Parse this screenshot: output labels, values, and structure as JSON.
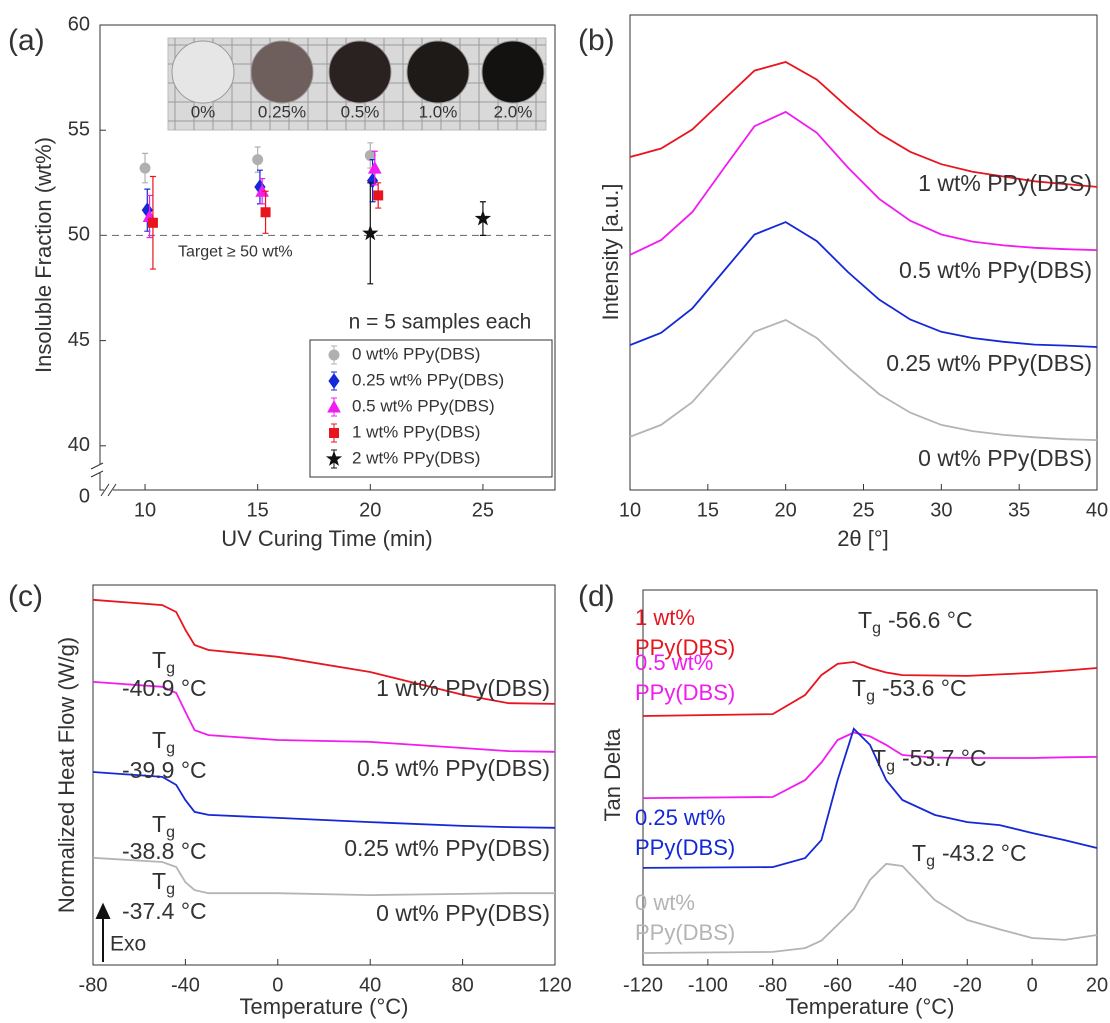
{
  "chart_data": [
    {
      "type": "scatter",
      "panel": "(a)",
      "x_label": "UV Curing Time (min)",
      "y_label": "Insoluble Fraction (wt%)",
      "xlim": [
        8,
        28.2
      ],
      "xticks": [
        10,
        15,
        20,
        25
      ],
      "ylim": [
        37.9,
        60
      ],
      "yticks": [
        40,
        45,
        50,
        55,
        60
      ],
      "y_break_tick": 0,
      "target": {
        "value": 50,
        "label": "Target ≥ 50 wt%"
      },
      "note": "n = 5 samples each",
      "note_color": "#1ab2e8",
      "photo_labels": [
        "0%",
        "0.25%",
        "0.5%",
        "1.0%",
        "2.0%"
      ],
      "series": [
        {
          "name": "0 wt% PPy(DBS)",
          "color": "#b0b0b0",
          "marker": "circle",
          "x": [
            10,
            15,
            20
          ],
          "values": [
            53.2,
            53.6,
            53.8
          ],
          "errors": [
            0.7,
            0.6,
            0.6
          ]
        },
        {
          "name": "0.25 wt% PPy(DBS)",
          "color": "#1428d8",
          "marker": "diamond",
          "x": [
            10.1,
            15.1,
            20.1
          ],
          "values": [
            51.2,
            52.3,
            52.6
          ],
          "errors": [
            1.0,
            0.8,
            1.0
          ]
        },
        {
          "name": "0.5 wt% PPy(DBS)",
          "color": "#f01cf0",
          "marker": "triangle",
          "x": [
            10.2,
            15.2,
            20.2
          ],
          "values": [
            50.9,
            52.1,
            53.2
          ],
          "errors": [
            1.0,
            0.6,
            0.8
          ]
        },
        {
          "name": "1 wt% PPy(DBS)",
          "color": "#e8141e",
          "marker": "square",
          "x": [
            10.35,
            15.35,
            20.35
          ],
          "values": [
            50.6,
            51.1,
            51.9
          ],
          "errors": [
            2.2,
            1.0,
            0.6
          ]
        },
        {
          "name": "2 wt% PPy(DBS)",
          "color": "#111111",
          "marker": "star",
          "x": [
            20,
            25
          ],
          "values": [
            50.1,
            50.8
          ],
          "errors": [
            2.4,
            0.8
          ]
        }
      ]
    },
    {
      "type": "line",
      "panel": "(b)",
      "x_label": "2θ [°]",
      "y_label": "Intensity [a.u.]",
      "xlim": [
        10,
        40
      ],
      "xticks": [
        10,
        15,
        20,
        25,
        30,
        35,
        40
      ],
      "ylim": [
        0,
        100
      ],
      "x": [
        10,
        12,
        14,
        16,
        18,
        20,
        22,
        24,
        26,
        28,
        30,
        32,
        34,
        36,
        38,
        40
      ],
      "series": [
        {
          "name": "1 wt% PPy(DBS)",
          "color": "#e8141e",
          "values": [
            70.1,
            71.9,
            75.9,
            82.1,
            88.3,
            90.1,
            86.4,
            80.5,
            75.1,
            71.2,
            68.6,
            67.0,
            66.0,
            65.0,
            64.4,
            63.8
          ]
        },
        {
          "name": "0.5 wt% PPy(DBS)",
          "color": "#f01cf0",
          "values": [
            49.5,
            52.6,
            58.5,
            67.6,
            76.6,
            79.6,
            75.2,
            67.9,
            61.3,
            56.7,
            53.8,
            52.3,
            51.5,
            51.0,
            50.7,
            50.5
          ]
        },
        {
          "name": "0.25 wt% PPy(DBS)",
          "color": "#1428d8",
          "values": [
            30.5,
            33.1,
            38.2,
            46.0,
            53.8,
            56.4,
            52.4,
            45.9,
            40.1,
            35.9,
            33.3,
            32.0,
            31.2,
            30.6,
            30.4,
            30.1
          ]
        },
        {
          "name": "0 wt% PPy(DBS)",
          "color": "#b4b4b4",
          "values": [
            11.2,
            13.7,
            18.5,
            25.9,
            33.3,
            35.8,
            32.0,
            25.8,
            20.2,
            16.3,
            13.7,
            12.4,
            11.6,
            11.1,
            10.7,
            10.5
          ]
        }
      ]
    },
    {
      "type": "line",
      "panel": "(c)",
      "x_label": "Temperature (°C)",
      "y_label": "Normalized Heat Flow (W/g)",
      "xlim": [
        -80,
        120
      ],
      "xticks": [
        -80,
        -40,
        0,
        40,
        80,
        120
      ],
      "ylim": [
        0,
        100
      ],
      "exo_label": "Exo",
      "x": [
        -80,
        -50,
        -44,
        -40,
        -36,
        -30,
        0,
        40,
        80,
        100,
        120
      ],
      "series": [
        {
          "name": "1 wt% PPy(DBS)",
          "color": "#e8141e",
          "values": [
            96.1,
            94.7,
            92.9,
            88.2,
            84.2,
            82.9,
            81.1,
            77.1,
            71.1,
            68.9,
            68.7
          ],
          "annotation": {
            "symbol": "T",
            "subscript": "g",
            "value": "-40.9 °C"
          }
        },
        {
          "name": "0.5 wt% PPy(DBS)",
          "color": "#f01cf0",
          "values": [
            74.5,
            73.2,
            71.6,
            66.6,
            61.8,
            60.5,
            59.2,
            58.7,
            57.1,
            56.3,
            56.1
          ],
          "annotation": {
            "symbol": "T",
            "subscript": "g",
            "value": "-39.9 °C"
          }
        },
        {
          "name": "0.25 wt% PPy(DBS)",
          "color": "#1428d8",
          "values": [
            50.8,
            49.5,
            47.4,
            43.4,
            40.3,
            39.5,
            38.7,
            37.6,
            36.6,
            36.3,
            36.1
          ],
          "annotation": {
            "symbol": "T",
            "subscript": "g",
            "value": "-38.8 °C"
          }
        },
        {
          "name": "0 wt% PPy(DBS)",
          "color": "#b4b4b4",
          "values": [
            28.2,
            27.1,
            25.8,
            21.8,
            19.7,
            18.9,
            18.9,
            18.4,
            18.7,
            18.9,
            18.9
          ],
          "annotation": {
            "symbol": "T",
            "subscript": "g",
            "value": "-37.4 °C"
          }
        }
      ]
    },
    {
      "type": "line",
      "panel": "(d)",
      "x_label": "Temperature (°C)",
      "y_label": "Tan Delta",
      "xlim": [
        -120,
        20
      ],
      "xticks": [
        -120,
        -100,
        -80,
        -60,
        -40,
        -20,
        0,
        20
      ],
      "ylim": [
        0,
        100
      ],
      "x": [
        -120,
        -80,
        -70,
        -65,
        -60,
        -55,
        -50,
        -45,
        -40,
        -30,
        -20,
        -10,
        0,
        10,
        20
      ],
      "series": [
        {
          "name": "1 wt% PPy(DBS)",
          "color": "#e8141e",
          "values": [
            66.4,
            66.9,
            72.0,
            77.3,
            80.3,
            80.8,
            79.2,
            78.0,
            77.3,
            77.2,
            77.1,
            77.5,
            77.9,
            78.5,
            79.2
          ],
          "annotation": {
            "symbol": "T",
            "subscript": "g",
            "value": "-56.6 °C"
          }
        },
        {
          "name": "0.5 wt% PPy(DBS)",
          "color": "#f01cf0",
          "values": [
            44.5,
            44.8,
            49.3,
            54.0,
            60.0,
            62.0,
            61.0,
            58.7,
            56.0,
            55.3,
            55.2,
            55.2,
            55.2,
            55.4,
            55.5
          ],
          "annotation": {
            "symbol": "T",
            "subscript": "g",
            "value": "-53.6 °C"
          }
        },
        {
          "name": "0.25 wt% PPy(DBS)",
          "color": "#1428d8",
          "values": [
            25.9,
            26.1,
            28.5,
            33.3,
            49.3,
            63.0,
            58.7,
            49.3,
            44.0,
            40.0,
            38.1,
            37.3,
            35.2,
            33.3,
            31.2
          ],
          "annotation": {
            "symbol": "T",
            "subscript": "g",
            "value": "-53.7 °C"
          }
        },
        {
          "name": "0 wt% PPy(DBS)",
          "color": "#b4b4b4",
          "values": [
            3.2,
            3.5,
            4.5,
            6.5,
            10.7,
            15.0,
            22.7,
            27.0,
            26.4,
            17.3,
            12.0,
            9.5,
            7.2,
            6.7,
            8.0
          ],
          "annotation": {
            "symbol": "T",
            "subscript": "g",
            "value": "-43.2 °C"
          }
        }
      ]
    }
  ]
}
